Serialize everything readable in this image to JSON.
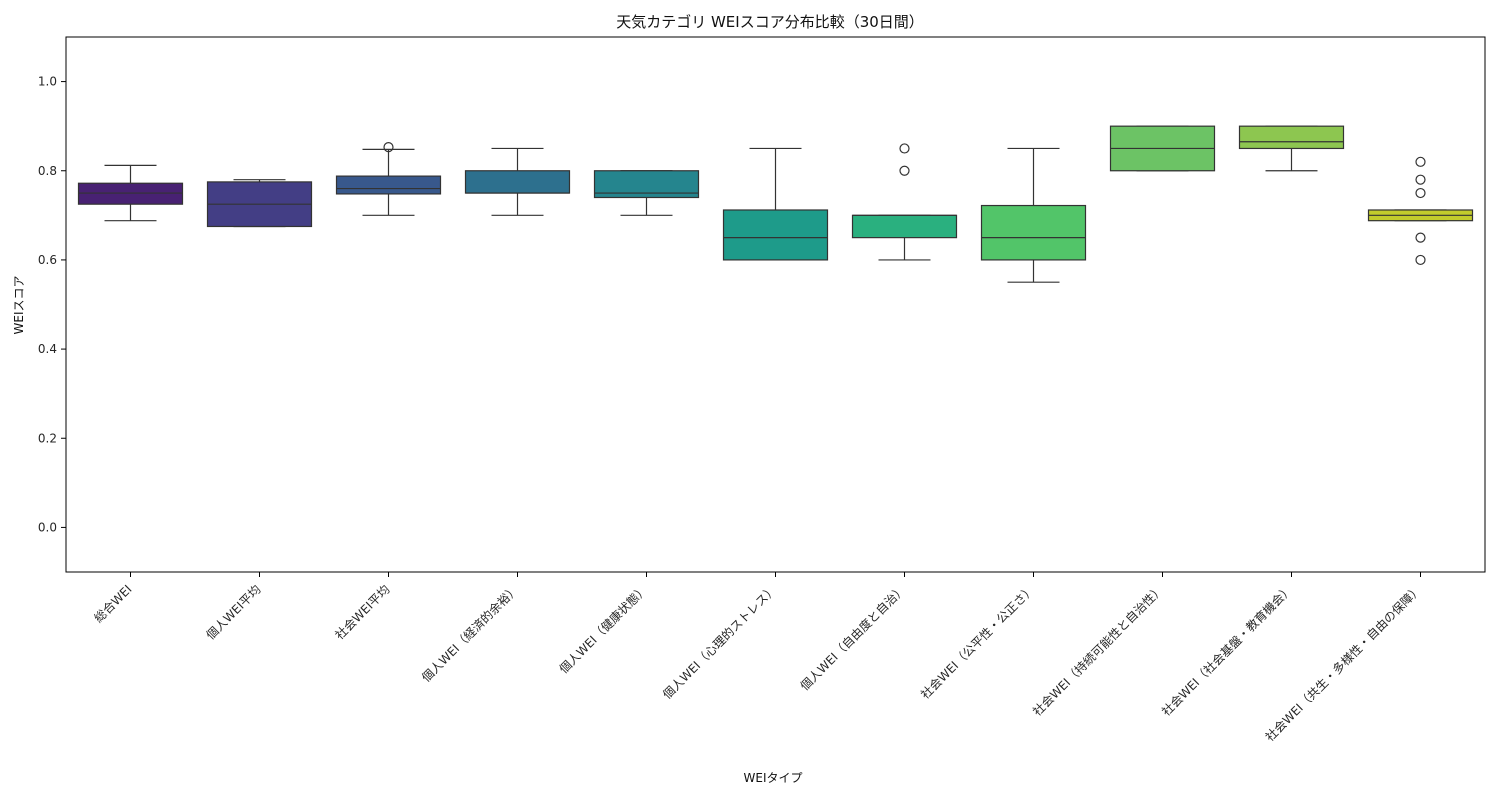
{
  "chart_data": {
    "type": "box",
    "title": "天気カテゴリ WEIスコア分布比較（30日間）",
    "xlabel": "WEIタイプ",
    "ylabel": "WEIスコア",
    "ylim": [
      -0.1,
      1.1
    ],
    "yticks": [
      "0.0",
      "0.2",
      "0.4",
      "0.6",
      "0.8",
      "1.0"
    ],
    "grid": false,
    "categories": [
      "総合WEI",
      "個人WEI平均",
      "社会WEI平均",
      "個人WEI（経済的余裕）",
      "個人WEI（健康状態）",
      "個人WEI（心理的ストレス）",
      "個人WEI（自由度と自治）",
      "社会WEI（公平性・公正さ）",
      "社会WEI（持続可能性と自治性）",
      "社会WEI（社会基盤・教育機会）",
      "社会WEI（共生・多様性・自由の保障）"
    ],
    "boxes": [
      {
        "whisker_low": 0.688,
        "q1": 0.725,
        "median": 0.75,
        "q3": 0.772,
        "whisker_high": 0.812,
        "outliers": [],
        "color": "#482173"
      },
      {
        "whisker_low": 0.675,
        "q1": 0.675,
        "median": 0.725,
        "q3": 0.775,
        "whisker_high": 0.78,
        "outliers": [],
        "color": "#433e85"
      },
      {
        "whisker_low": 0.7,
        "q1": 0.748,
        "median": 0.76,
        "q3": 0.788,
        "whisker_high": 0.848,
        "outliers": [
          0.853
        ],
        "color": "#38588c"
      },
      {
        "whisker_low": 0.7,
        "q1": 0.75,
        "median": 0.75,
        "q3": 0.8,
        "whisker_high": 0.85,
        "outliers": [],
        "color": "#2d708e"
      },
      {
        "whisker_low": 0.7,
        "q1": 0.74,
        "median": 0.75,
        "q3": 0.8,
        "whisker_high": 0.8,
        "outliers": [],
        "color": "#25858e"
      },
      {
        "whisker_low": 0.6,
        "q1": 0.6,
        "median": 0.65,
        "q3": 0.712,
        "whisker_high": 0.85,
        "outliers": [],
        "color": "#1e9b8a"
      },
      {
        "whisker_low": 0.6,
        "q1": 0.65,
        "median": 0.7,
        "q3": 0.7,
        "whisker_high": 0.7,
        "outliers": [
          0.8,
          0.85
        ],
        "color": "#2ab07f"
      },
      {
        "whisker_low": 0.55,
        "q1": 0.6,
        "median": 0.65,
        "q3": 0.722,
        "whisker_high": 0.85,
        "outliers": [],
        "color": "#52c569"
      },
      {
        "whisker_low": 0.8,
        "q1": 0.8,
        "median": 0.85,
        "q3": 0.9,
        "whisker_high": 0.9,
        "outliers": [],
        "color": "#6cc365"
      },
      {
        "whisker_low": 0.8,
        "q1": 0.85,
        "median": 0.865,
        "q3": 0.9,
        "whisker_high": 0.9,
        "outliers": [],
        "color": "#8dc650"
      },
      {
        "whisker_low": 0.688,
        "q1": 0.688,
        "median": 0.7,
        "q3": 0.712,
        "whisker_high": 0.712,
        "outliers": [
          0.6,
          0.65,
          0.75,
          0.78,
          0.82
        ],
        "color": "#c2cc2c"
      }
    ]
  }
}
